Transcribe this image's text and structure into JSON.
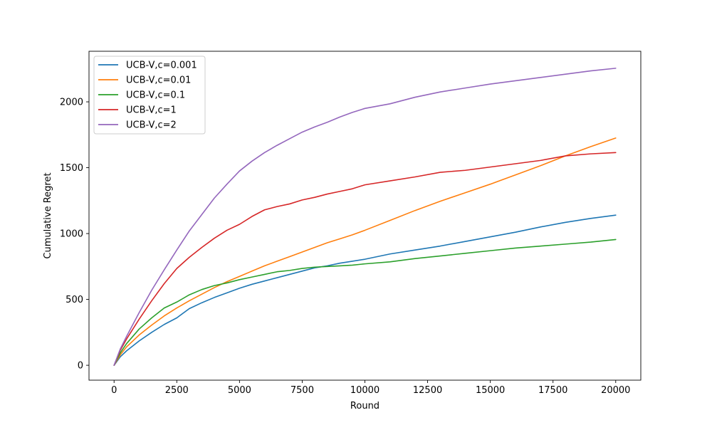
{
  "chart_data": {
    "type": "line",
    "title": "",
    "xlabel": "Round",
    "ylabel": "Cumulative Regret",
    "xlim": [
      -1000,
      21000
    ],
    "ylim": [
      -113,
      2384
    ],
    "xticks": [
      0,
      2500,
      5000,
      7500,
      10000,
      12500,
      15000,
      17500,
      20000
    ],
    "yticks": [
      0,
      500,
      1000,
      1500,
      2000
    ],
    "legend_position": "top-left",
    "grid": false,
    "series": [
      {
        "name": "UCB-V,c=0.001",
        "color": "#1f77b4",
        "x": [
          0,
          250,
          500,
          1000,
          1500,
          2000,
          2500,
          3000,
          3500,
          4000,
          4500,
          5000,
          5500,
          6000,
          6500,
          7000,
          7500,
          8000,
          8500,
          9000,
          9500,
          10000,
          11000,
          12000,
          13000,
          14000,
          15000,
          16000,
          17000,
          18000,
          19000,
          20000
        ],
        "values": [
          0,
          65,
          110,
          185,
          250,
          310,
          360,
          430,
          475,
          515,
          550,
          585,
          615,
          640,
          665,
          690,
          715,
          740,
          755,
          775,
          790,
          805,
          845,
          875,
          905,
          940,
          975,
          1010,
          1050,
          1085,
          1115,
          1140
        ]
      },
      {
        "name": "UCB-V,c=0.01",
        "color": "#ff7f0e",
        "x": [
          0,
          250,
          500,
          1000,
          1500,
          2000,
          2500,
          3000,
          3500,
          4000,
          4500,
          5000,
          5500,
          6000,
          6500,
          7000,
          7500,
          8000,
          8500,
          9000,
          9500,
          10000,
          11000,
          12000,
          13000,
          14000,
          15000,
          16000,
          17000,
          18000,
          19000,
          20000
        ],
        "values": [
          0,
          80,
          140,
          230,
          305,
          375,
          435,
          490,
          540,
          590,
          635,
          675,
          715,
          755,
          790,
          825,
          860,
          895,
          930,
          960,
          990,
          1025,
          1100,
          1175,
          1245,
          1310,
          1375,
          1445,
          1515,
          1590,
          1660,
          1725
        ]
      },
      {
        "name": "UCB-V,c=0.1",
        "color": "#2ca02c",
        "x": [
          0,
          250,
          500,
          1000,
          1500,
          2000,
          2500,
          3000,
          3500,
          4000,
          4500,
          5000,
          5500,
          6000,
          6500,
          7000,
          7500,
          8000,
          8500,
          9000,
          9500,
          10000,
          11000,
          12000,
          13000,
          14000,
          15000,
          16000,
          17000,
          18000,
          19000,
          20000
        ],
        "values": [
          0,
          95,
          165,
          275,
          360,
          435,
          480,
          535,
          575,
          605,
          625,
          650,
          670,
          690,
          710,
          720,
          735,
          745,
          750,
          755,
          760,
          770,
          785,
          810,
          830,
          850,
          870,
          890,
          905,
          920,
          935,
          955
        ]
      },
      {
        "name": "UCB-V,c=1",
        "color": "#d62728",
        "x": [
          0,
          250,
          500,
          1000,
          1500,
          2000,
          2500,
          3000,
          3500,
          4000,
          4500,
          5000,
          5500,
          6000,
          6500,
          7000,
          7500,
          8000,
          8500,
          9000,
          9500,
          10000,
          11000,
          12000,
          13000,
          14000,
          15000,
          16000,
          17000,
          18000,
          19000,
          20000
        ],
        "values": [
          0,
          115,
          200,
          350,
          490,
          620,
          735,
          820,
          895,
          965,
          1025,
          1070,
          1130,
          1180,
          1205,
          1225,
          1255,
          1275,
          1300,
          1320,
          1340,
          1370,
          1400,
          1430,
          1465,
          1480,
          1505,
          1530,
          1555,
          1590,
          1605,
          1615
        ]
      },
      {
        "name": "UCB-V,c=2",
        "color": "#9467bd",
        "x": [
          0,
          250,
          500,
          1000,
          1500,
          2000,
          2500,
          3000,
          3500,
          4000,
          4500,
          5000,
          5500,
          6000,
          6500,
          7000,
          7500,
          8000,
          8500,
          9000,
          9500,
          10000,
          11000,
          12000,
          13000,
          14000,
          15000,
          16000,
          17000,
          18000,
          19000,
          20000
        ],
        "values": [
          0,
          125,
          220,
          400,
          570,
          725,
          875,
          1020,
          1145,
          1270,
          1375,
          1475,
          1550,
          1615,
          1670,
          1720,
          1770,
          1810,
          1845,
          1885,
          1920,
          1950,
          1985,
          2035,
          2075,
          2105,
          2135,
          2160,
          2185,
          2210,
          2235,
          2255
        ]
      }
    ]
  }
}
